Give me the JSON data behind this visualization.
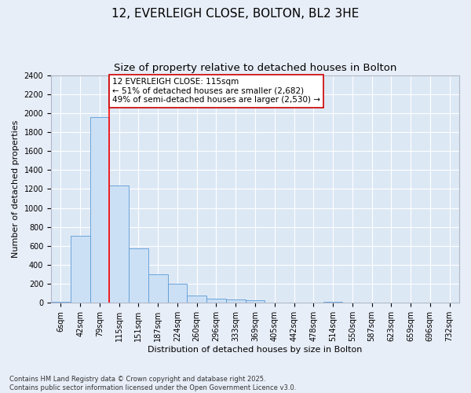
{
  "title_line1": "12, EVERLEIGH CLOSE, BOLTON, BL2 3HE",
  "title_line2": "Size of property relative to detached houses in Bolton",
  "xlabel": "Distribution of detached houses by size in Bolton",
  "ylabel": "Number of detached properties",
  "bin_labels": [
    "6sqm",
    "42sqm",
    "79sqm",
    "115sqm",
    "151sqm",
    "187sqm",
    "224sqm",
    "260sqm",
    "296sqm",
    "333sqm",
    "369sqm",
    "405sqm",
    "442sqm",
    "478sqm",
    "514sqm",
    "550sqm",
    "587sqm",
    "623sqm",
    "659sqm",
    "696sqm",
    "732sqm"
  ],
  "bar_values": [
    15,
    710,
    1960,
    1240,
    575,
    305,
    200,
    80,
    45,
    35,
    30,
    0,
    5,
    0,
    15,
    0,
    5,
    0,
    5,
    0,
    5
  ],
  "bar_color": "#cce0f5",
  "bar_edge_color": "#5b9bd5",
  "fig_background_color": "#e8eef8",
  "plot_background_color": "#dde8f5",
  "grid_color": "#ffffff",
  "red_line_index": 3,
  "annotation_text": "12 EVERLEIGH CLOSE: 115sqm\n← 51% of detached houses are smaller (2,682)\n49% of semi-detached houses are larger (2,530) →",
  "annotation_box_facecolor": "#ffffff",
  "annotation_box_edgecolor": "#cc0000",
  "ylim": [
    0,
    2400
  ],
  "yticks": [
    0,
    200,
    400,
    600,
    800,
    1000,
    1200,
    1400,
    1600,
    1800,
    2000,
    2200,
    2400
  ],
  "copyright_text": "Contains HM Land Registry data © Crown copyright and database right 2025.\nContains public sector information licensed under the Open Government Licence v3.0.",
  "title_fontsize": 11,
  "subtitle_fontsize": 9.5,
  "axis_label_fontsize": 8,
  "tick_fontsize": 7,
  "annotation_fontsize": 7.5,
  "copyright_fontsize": 6
}
